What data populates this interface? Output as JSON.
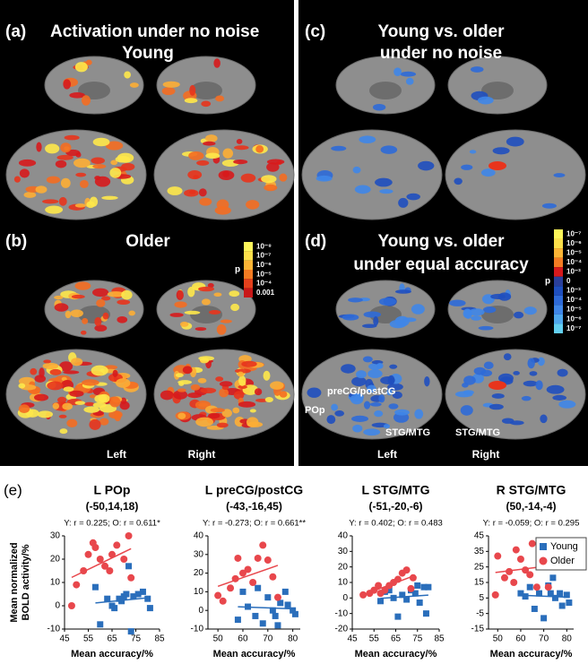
{
  "figure": {
    "a": {
      "label": "(a)",
      "title": "Activation under no noise",
      "sub": "Young"
    },
    "b": {
      "label": "(b)",
      "title": "Older"
    },
    "left_cbar": {
      "ticks": [
        "10⁻⁸",
        "10⁻⁷",
        "10⁻⁶",
        "10⁻⁵",
        "10⁻⁴",
        "0.001"
      ],
      "p": "p"
    },
    "lr_left": [
      "Left",
      "Right"
    ],
    "c": {
      "label": "(c)",
      "title1": "Young vs. older",
      "title2": "under no noise"
    },
    "d": {
      "label": "(d)",
      "title1": "Young vs. older",
      "title2": "under equal accuracy"
    },
    "right_cbar": {
      "ticks": [
        "10⁻⁷",
        "10⁻⁶",
        "10⁻⁵",
        "10⁻⁴",
        "10⁻³",
        "0",
        "10⁻³",
        "10⁻⁴",
        "10⁻⁵",
        "10⁻⁶",
        "10⁻⁷"
      ],
      "p": "p"
    },
    "regions": {
      "precg": "preCG/postCG",
      "pop": "POp",
      "stg1": "STG/MTG",
      "stg2": "STG/MTG"
    },
    "lr_right": [
      "Left",
      "Right"
    ],
    "e": {
      "label": "(e)",
      "ylabel": [
        "Mean normalized",
        "BOLD activity/%"
      ]
    }
  },
  "chart_data": [
    {
      "type": "scatter",
      "title": "L POp",
      "subtitle": "(-50,14,18)",
      "annotation": "Y: r = 0.225;  O: r = 0.611*",
      "xlabel": "Mean accuracy/%",
      "xlim": [
        45,
        85
      ],
      "xticks": [
        45,
        55,
        65,
        75,
        85
      ],
      "ylim": [
        -10,
        30
      ],
      "yticks": [
        -10,
        0,
        10,
        20,
        30
      ],
      "series": [
        {
          "name": "Young",
          "color": "#2a6ebb",
          "x": [
            58,
            60,
            63,
            65,
            66,
            68,
            69,
            70,
            71,
            72,
            73,
            74,
            76,
            78,
            80,
            81
          ],
          "values": [
            8,
            -8,
            3,
            0,
            -1,
            3,
            2,
            4,
            5,
            17,
            -11,
            4,
            5,
            6,
            3,
            -1
          ]
        },
        {
          "name": "Older",
          "color": "#e8474c",
          "x": [
            48,
            50,
            53,
            55,
            57,
            58,
            60,
            62,
            64,
            65,
            67,
            70,
            72,
            73
          ],
          "values": [
            0,
            9,
            15,
            22,
            27,
            25,
            20,
            17,
            15,
            22,
            26,
            20,
            30,
            12
          ]
        }
      ]
    },
    {
      "type": "scatter",
      "title": "L preCG/postCG",
      "subtitle": "(-43,-16,45)",
      "annotation": "Y: r = -0.273;  O: r = 0.661**",
      "xlabel": "Mean accuracy/%",
      "xlim": [
        46,
        83
      ],
      "xticks": [
        50,
        60,
        70,
        80
      ],
      "ylim": [
        -10,
        40
      ],
      "yticks": [
        -10,
        0,
        10,
        20,
        30,
        40
      ],
      "series": [
        {
          "name": "Young",
          "color": "#2a6ebb",
          "x": [
            58,
            60,
            62,
            65,
            66,
            68,
            70,
            72,
            73,
            74,
            75,
            77,
            78,
            80,
            81
          ],
          "values": [
            -5,
            10,
            2,
            -3,
            12,
            -7,
            7,
            0,
            -3,
            -8,
            4,
            10,
            3,
            0,
            -2
          ]
        },
        {
          "name": "Older",
          "color": "#e8474c",
          "x": [
            50,
            52,
            55,
            57,
            58,
            60,
            62,
            64,
            66,
            68,
            70,
            72,
            74
          ],
          "values": [
            8,
            5,
            12,
            17,
            28,
            20,
            22,
            15,
            28,
            35,
            27,
            18,
            7
          ]
        }
      ]
    },
    {
      "type": "scatter",
      "title": "L STG/MTG",
      "subtitle": "(-51,-20,-6)",
      "annotation": "Y: r = 0.402;  O: r = 0.483",
      "xlabel": "Mean accuracy/%",
      "xlim": [
        45,
        85
      ],
      "xticks": [
        45,
        55,
        65,
        75,
        85
      ],
      "ylim": [
        -20,
        40
      ],
      "yticks": [
        -20,
        -10,
        0,
        10,
        20,
        30,
        40
      ],
      "series": [
        {
          "name": "Young",
          "color": "#2a6ebb",
          "x": [
            58,
            60,
            62,
            64,
            66,
            68,
            70,
            72,
            74,
            75,
            76,
            78,
            79,
            80
          ],
          "values": [
            -2,
            4,
            5,
            0,
            -12,
            2,
            -1,
            5,
            3,
            8,
            -3,
            7,
            -10,
            7
          ]
        },
        {
          "name": "Older",
          "color": "#e8474c",
          "x": [
            50,
            53,
            55,
            57,
            58,
            60,
            62,
            64,
            66,
            68,
            70,
            72,
            73
          ],
          "values": [
            2,
            3,
            5,
            8,
            3,
            5,
            8,
            10,
            12,
            16,
            18,
            6,
            13
          ]
        }
      ]
    },
    {
      "type": "scatter",
      "title": "R STG/MTG",
      "subtitle": "(50,-14,-4)",
      "annotation": "Y: r = -0.059;  O: r = 0.295",
      "xlabel": "Mean accuracy/%",
      "xlim": [
        46,
        83
      ],
      "xticks": [
        50,
        60,
        70,
        80
      ],
      "ylim": [
        -15,
        45
      ],
      "yticks": [
        -15,
        -5,
        5,
        15,
        25,
        35,
        45
      ],
      "legend": "upper right",
      "series": [
        {
          "name": "Young",
          "color": "#2a6ebb",
          "x": [
            60,
            62,
            64,
            66,
            68,
            70,
            72,
            73,
            74,
            75,
            77,
            78,
            80,
            81
          ],
          "values": [
            8,
            6,
            12,
            -2,
            8,
            -8,
            13,
            8,
            18,
            5,
            8,
            0,
            7,
            2
          ]
        },
        {
          "name": "Older",
          "color": "#e8474c",
          "x": [
            49,
            50,
            53,
            55,
            57,
            58,
            60,
            62,
            64,
            65,
            67,
            68,
            70,
            72
          ],
          "values": [
            7,
            32,
            18,
            22,
            15,
            36,
            30,
            23,
            20,
            40,
            12,
            35,
            28,
            12
          ]
        }
      ]
    }
  ]
}
